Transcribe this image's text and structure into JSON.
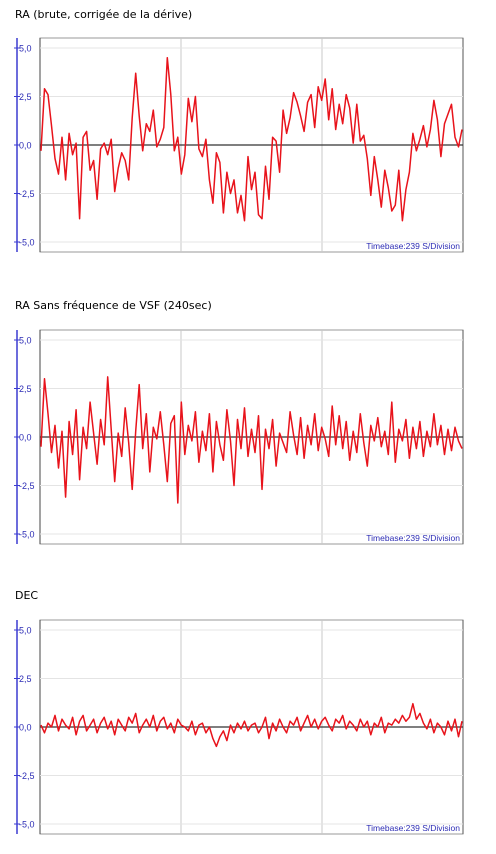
{
  "chart_data": [
    {
      "type": "line",
      "title": "RA (brute, corrigée de la dérive)",
      "annotation": "Timebase:239 S/Division",
      "ylim": [
        -5.0,
        5.0
      ],
      "yticks": [
        "5,0",
        "2,5",
        "0,0",
        "-2,5",
        "-5,0"
      ],
      "grid": true,
      "colors": {
        "line": "#e8131b",
        "axis": "#3b3bd1",
        "grid": "#c8c8c8",
        "label": "#2d2db5"
      },
      "series": [
        {
          "x": [
            0,
            1,
            2,
            3,
            4,
            5,
            6,
            7,
            8,
            9,
            10,
            11,
            12,
            13,
            14,
            15,
            16,
            17,
            18,
            19,
            20,
            21,
            22,
            23,
            24,
            25,
            26,
            27,
            28,
            29,
            30,
            31,
            32,
            33,
            34,
            35,
            36,
            37,
            38,
            39,
            40,
            41,
            42,
            43,
            44,
            45,
            46,
            47,
            48,
            49,
            50,
            51,
            52,
            53,
            54,
            55,
            56,
            57,
            58,
            59,
            60,
            61,
            62,
            63,
            64,
            65,
            66,
            67,
            68,
            69,
            70,
            71,
            72,
            73,
            74,
            75,
            76,
            77,
            78,
            79,
            80,
            81,
            82,
            83,
            84,
            85,
            86,
            87,
            88,
            89,
            90,
            91,
            92,
            93,
            94,
            95,
            96,
            97,
            98,
            99,
            100,
            101,
            102,
            103,
            104,
            105,
            106,
            107,
            108,
            109,
            110,
            111,
            112,
            113,
            114,
            115,
            116,
            117,
            118,
            119,
            120
          ],
          "values": [
            -0.3,
            2.9,
            2.6,
            1.0,
            -0.7,
            -1.5,
            0.4,
            -1.8,
            0.6,
            -0.5,
            0.1,
            -3.8,
            0.4,
            0.7,
            -1.3,
            -0.8,
            -2.8,
            -0.2,
            0.1,
            -0.5,
            0.3,
            -2.4,
            -1.2,
            -0.4,
            -0.8,
            -1.8,
            1.4,
            3.7,
            1.5,
            -0.3,
            1.1,
            0.7,
            1.8,
            -0.1,
            0.3,
            0.9,
            4.5,
            2.6,
            -0.3,
            0.4,
            -1.5,
            -0.5,
            2.4,
            1.2,
            2.5,
            -0.2,
            -0.6,
            0.3,
            -1.8,
            -3.0,
            -0.4,
            -0.9,
            -3.5,
            -1.4,
            -2.5,
            -1.8,
            -3.5,
            -2.6,
            -3.9,
            -0.6,
            -2.3,
            -1.4,
            -3.6,
            -3.8,
            -1.1,
            -2.8,
            0.4,
            0.2,
            -1.4,
            1.8,
            0.6,
            1.4,
            2.7,
            2.2,
            1.5,
            0.7,
            2.2,
            2.6,
            0.9,
            3.0,
            2.3,
            3.4,
            1.3,
            2.9,
            0.8,
            2.1,
            1.1,
            2.6,
            1.9,
            0.1,
            2.1,
            0.2,
            0.5,
            -0.7,
            -2.6,
            -0.6,
            -1.8,
            -3.2,
            -1.3,
            -2.2,
            -3.4,
            -3.1,
            -1.3,
            -3.9,
            -2.3,
            -1.4,
            0.6,
            -0.3,
            0.3,
            1.0,
            -0.1,
            0.8,
            2.3,
            1.3,
            -0.6,
            1.1,
            1.6,
            2.1,
            0.4,
            -0.1,
            0.8
          ]
        }
      ]
    },
    {
      "type": "line",
      "title": "RA Sans fréquence  de VSF (240sec)",
      "annotation": "Timebase:239 S/Division",
      "ylim": [
        -5.0,
        5.0
      ],
      "yticks": [
        "5,0",
        "2,5",
        "0,0",
        "-2,5",
        "-5,0"
      ],
      "grid": true,
      "colors": {
        "line": "#e8131b",
        "axis": "#3b3bd1",
        "grid": "#c8c8c8",
        "label": "#2d2db5"
      },
      "series": [
        {
          "x": [
            0,
            1,
            2,
            3,
            4,
            5,
            6,
            7,
            8,
            9,
            10,
            11,
            12,
            13,
            14,
            15,
            16,
            17,
            18,
            19,
            20,
            21,
            22,
            23,
            24,
            25,
            26,
            27,
            28,
            29,
            30,
            31,
            32,
            33,
            34,
            35,
            36,
            37,
            38,
            39,
            40,
            41,
            42,
            43,
            44,
            45,
            46,
            47,
            48,
            49,
            50,
            51,
            52,
            53,
            54,
            55,
            56,
            57,
            58,
            59,
            60,
            61,
            62,
            63,
            64,
            65,
            66,
            67,
            68,
            69,
            70,
            71,
            72,
            73,
            74,
            75,
            76,
            77,
            78,
            79,
            80,
            81,
            82,
            83,
            84,
            85,
            86,
            87,
            88,
            89,
            90,
            91,
            92,
            93,
            94,
            95,
            96,
            97,
            98,
            99,
            100,
            101,
            102,
            103,
            104,
            105,
            106,
            107,
            108,
            109,
            110,
            111,
            112,
            113,
            114,
            115,
            116,
            117,
            118,
            119,
            120
          ],
          "values": [
            -0.5,
            3.0,
            1.2,
            -0.8,
            0.6,
            -1.6,
            0.3,
            -3.1,
            0.8,
            -0.9,
            1.4,
            -2.2,
            0.5,
            -0.6,
            1.8,
            0.2,
            -1.4,
            0.9,
            -0.4,
            3.1,
            0.4,
            -2.3,
            0.2,
            -1.0,
            1.5,
            -0.3,
            -2.7,
            0.3,
            2.7,
            -0.6,
            1.2,
            -1.8,
            0.5,
            -0.1,
            1.3,
            -0.4,
            -2.3,
            0.7,
            1.1,
            -3.4,
            1.8,
            -0.9,
            0.6,
            -0.2,
            1.3,
            -1.3,
            0.3,
            -0.7,
            1.2,
            -1.8,
            0.8,
            -0.4,
            -1.2,
            1.4,
            -0.2,
            -2.5,
            0.9,
            -0.6,
            1.5,
            -1.0,
            0.4,
            -0.8,
            1.1,
            -2.7,
            0.4,
            -0.6,
            0.9,
            -1.5,
            0.2,
            -0.3,
            -0.8,
            1.3,
            0.1,
            -0.9,
            1.0,
            -1.1,
            0.6,
            -0.4,
            1.2,
            -0.7,
            0.5,
            -0.1,
            -1.0,
            1.6,
            -0.4,
            1.1,
            -0.6,
            0.8,
            -1.2,
            0.3,
            -0.8,
            1.2,
            -0.3,
            -1.5,
            0.6,
            -0.2,
            1.0,
            -0.5,
            0.3,
            -0.9,
            1.8,
            -1.3,
            0.4,
            -0.2,
            0.9,
            -1.1,
            0.5,
            -0.6,
            0.8,
            -1.0,
            0.3,
            -0.5,
            1.2,
            -0.4,
            0.6,
            -0.9,
            0.4,
            -0.7,
            0.5,
            -0.2,
            -0.6
          ]
        }
      ]
    },
    {
      "type": "line",
      "title": "DEC",
      "annotation": "Timebase:239 S/Division",
      "ylim": [
        -5.0,
        5.0
      ],
      "yticks": [
        "5,0",
        "2,5",
        "0,0",
        "-2,5",
        "-5,0"
      ],
      "grid": true,
      "colors": {
        "line": "#e8131b",
        "axis": "#3b3bd1",
        "grid": "#c8c8c8",
        "label": "#2d2db5"
      },
      "series": [
        {
          "x": [
            0,
            1,
            2,
            3,
            4,
            5,
            6,
            7,
            8,
            9,
            10,
            11,
            12,
            13,
            14,
            15,
            16,
            17,
            18,
            19,
            20,
            21,
            22,
            23,
            24,
            25,
            26,
            27,
            28,
            29,
            30,
            31,
            32,
            33,
            34,
            35,
            36,
            37,
            38,
            39,
            40,
            41,
            42,
            43,
            44,
            45,
            46,
            47,
            48,
            49,
            50,
            51,
            52,
            53,
            54,
            55,
            56,
            57,
            58,
            59,
            60,
            61,
            62,
            63,
            64,
            65,
            66,
            67,
            68,
            69,
            70,
            71,
            72,
            73,
            74,
            75,
            76,
            77,
            78,
            79,
            80,
            81,
            82,
            83,
            84,
            85,
            86,
            87,
            88,
            89,
            90,
            91,
            92,
            93,
            94,
            95,
            96,
            97,
            98,
            99,
            100,
            101,
            102,
            103,
            104,
            105,
            106,
            107,
            108,
            109,
            110,
            111,
            112,
            113,
            114,
            115,
            116,
            117,
            118,
            119,
            120
          ],
          "values": [
            0.1,
            -0.3,
            0.2,
            0.0,
            0.6,
            -0.2,
            0.4,
            0.1,
            -0.1,
            0.5,
            -0.4,
            0.3,
            0.6,
            -0.2,
            0.1,
            0.4,
            -0.3,
            0.2,
            0.5,
            -0.1,
            0.3,
            -0.4,
            0.4,
            0.1,
            -0.2,
            0.5,
            0.2,
            0.7,
            -0.3,
            0.1,
            0.4,
            0.0,
            0.6,
            -0.2,
            0.3,
            0.5,
            -0.1,
            0.2,
            -0.3,
            0.4,
            0.1,
            0.0,
            -0.2,
            0.3,
            -0.4,
            0.1,
            0.2,
            -0.3,
            0.0,
            -0.6,
            -1.0,
            -0.5,
            -0.2,
            -0.7,
            0.1,
            -0.3,
            0.2,
            -0.1,
            0.3,
            -0.2,
            0.1,
            0.2,
            -0.3,
            0.0,
            0.5,
            -0.6,
            0.2,
            -0.2,
            0.4,
            0.0,
            -0.3,
            0.3,
            0.1,
            0.5,
            -0.2,
            0.2,
            0.6,
            0.0,
            0.4,
            -0.1,
            0.3,
            0.5,
            0.1,
            -0.2,
            0.4,
            0.2,
            0.6,
            -0.1,
            0.3,
            0.1,
            -0.2,
            0.4,
            0.0,
            0.3,
            -0.4,
            0.2,
            0.0,
            0.5,
            -0.3,
            0.2,
            0.1,
            0.4,
            0.2,
            0.6,
            0.3,
            0.5,
            1.2,
            0.4,
            0.7,
            0.2,
            -0.1,
            0.4,
            -0.3,
            0.2,
            0.0,
            -0.4,
            0.3,
            -0.2,
            0.4,
            -0.5,
            0.3
          ]
        }
      ]
    }
  ]
}
